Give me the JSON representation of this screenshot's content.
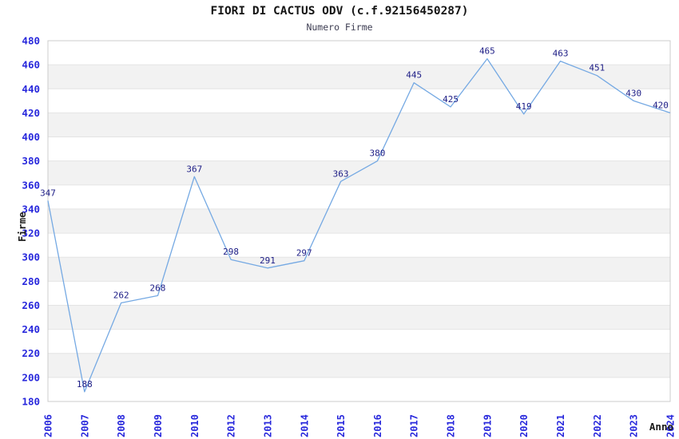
{
  "chart_data": {
    "type": "line",
    "title": "FIORI DI CACTUS ODV (c.f.92156450287)",
    "subtitle": "Numero Firme",
    "xlabel": "Anno",
    "ylabel": "Firme",
    "categories": [
      "2006",
      "2007",
      "2008",
      "2009",
      "2010",
      "2012",
      "2013",
      "2014",
      "2015",
      "2016",
      "2017",
      "2018",
      "2019",
      "2020",
      "2021",
      "2022",
      "2023",
      "2024"
    ],
    "values": [
      347,
      188,
      262,
      268,
      367,
      298,
      291,
      297,
      363,
      380,
      445,
      425,
      465,
      419,
      463,
      451,
      430,
      420
    ],
    "ylim": [
      180,
      480
    ],
    "ytick_step": 20,
    "grid": "horizontal",
    "legend": "none",
    "band_fill": "alternating",
    "colors": {
      "line": "#75a9e3",
      "data_label": "#1c1c85",
      "tick_label": "#2828dc",
      "title": "#151515",
      "subtitle": "#3d3d52",
      "axis_title": "#1b1b1b",
      "band": "#f2f2f2",
      "gridline": "#e4e4e4",
      "plot_border": "#cccccc",
      "background": "#ffffff"
    }
  }
}
